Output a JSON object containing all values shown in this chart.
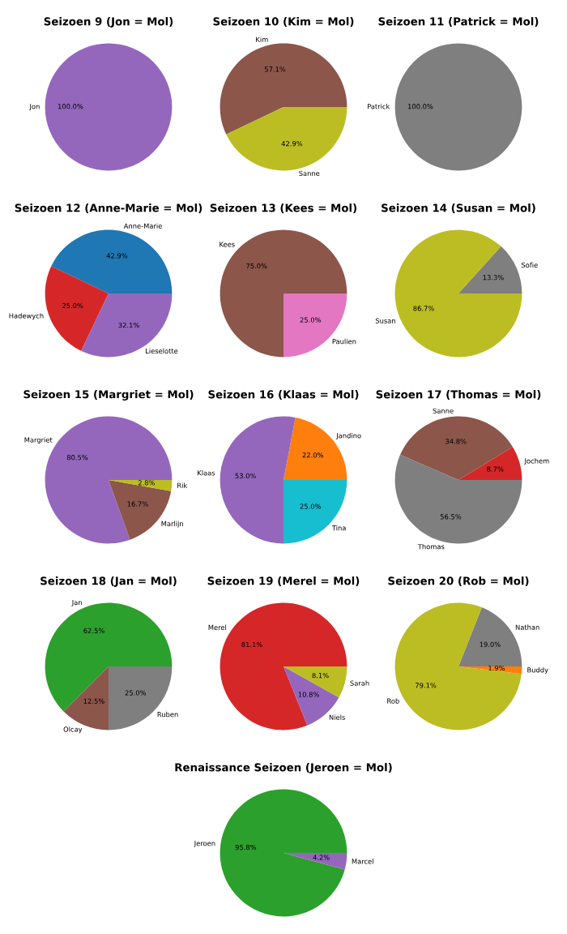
{
  "chart_data": [
    {
      "type": "pie",
      "title": "Seizoen 9 (Jon = Mol)",
      "categories": [
        "Jon"
      ],
      "values": [
        100
      ],
      "value_labels": [
        "100.0%"
      ],
      "colors": [
        "#9467bd"
      ]
    },
    {
      "type": "pie",
      "title": "Seizoen 10 (Kim = Mol)",
      "categories": [
        "Kim",
        "Sanne"
      ],
      "values": [
        57.1,
        42.9
      ],
      "value_labels": [
        "57.1%",
        "42.9%"
      ],
      "colors": [
        "#8c564b",
        "#bcbd22"
      ]
    },
    {
      "type": "pie",
      "title": "Seizoen 11 (Patrick = Mol)",
      "categories": [
        "Patrick"
      ],
      "values": [
        100
      ],
      "value_labels": [
        "100.0%"
      ],
      "colors": [
        "#7f7f7f"
      ]
    },
    {
      "type": "pie",
      "title": "Seizoen 12 (Anne-Marie = Mol)",
      "categories": [
        "Anne-Marie",
        "Hadewych",
        "Lieselotte"
      ],
      "values": [
        42.9,
        25,
        32.1
      ],
      "value_labels": [
        "42.9%",
        "25.0%",
        "32.1%"
      ],
      "colors": [
        "#1f77b4",
        "#d62728",
        "#9467bd"
      ]
    },
    {
      "type": "pie",
      "title": "Seizoen 13 (Kees = Mol)",
      "categories": [
        "Kees",
        "Paulien"
      ],
      "values": [
        75,
        25
      ],
      "value_labels": [
        "75.0%",
        "25.0%"
      ],
      "colors": [
        "#8c564b",
        "#e377c2"
      ]
    },
    {
      "type": "pie",
      "title": "Seizoen 14 (Susan = Mol)",
      "categories": [
        "Sofie",
        "Susan"
      ],
      "values": [
        13.3,
        86.7
      ],
      "value_labels": [
        "13.3%",
        "86.7%"
      ],
      "colors": [
        "#7f7f7f",
        "#bcbd22"
      ]
    },
    {
      "type": "pie",
      "title": "Seizoen 15 (Margriet = Mol)",
      "categories": [
        "Margriet",
        "Marlijn",
        "Rik"
      ],
      "values": [
        80.5,
        16.7,
        2.8
      ],
      "value_labels": [
        "80.5%",
        "16.7%",
        "2.8%"
      ],
      "colors": [
        "#9467bd",
        "#8c564b",
        "#bcbd22"
      ]
    },
    {
      "type": "pie",
      "title": "Seizoen 16 (Klaas = Mol)",
      "categories": [
        "Jandino",
        "Klaas",
        "Tina"
      ],
      "values": [
        22,
        53,
        25
      ],
      "value_labels": [
        "22.0%",
        "53.0%",
        "25.0%"
      ],
      "colors": [
        "#ff7f0e",
        "#9467bd",
        "#17becf"
      ]
    },
    {
      "type": "pie",
      "title": "Seizoen 17 (Thomas = Mol)",
      "categories": [
        "Jochem",
        "Sanne",
        "Thomas"
      ],
      "values": [
        8.7,
        34.8,
        56.5
      ],
      "value_labels": [
        "8.7%",
        "34.8%",
        "56.5%"
      ],
      "colors": [
        "#d62728",
        "#8c564b",
        "#7f7f7f"
      ]
    },
    {
      "type": "pie",
      "title": "Seizoen 18 (Jan = Mol)",
      "categories": [
        "Jan",
        "Olcay",
        "Ruben"
      ],
      "values": [
        62.5,
        12.5,
        25
      ],
      "value_labels": [
        "62.5%",
        "12.5%",
        "25.0%"
      ],
      "colors": [
        "#2ca02c",
        "#8c564b",
        "#7f7f7f"
      ]
    },
    {
      "type": "pie",
      "title": "Seizoen 19 (Merel = Mol)",
      "categories": [
        "Merel",
        "Niels",
        "Sarah"
      ],
      "values": [
        81.1,
        10.8,
        8.1
      ],
      "value_labels": [
        "81.1%",
        "10.8%",
        "8.1%"
      ],
      "colors": [
        "#d62728",
        "#9467bd",
        "#bcbd22"
      ]
    },
    {
      "type": "pie",
      "title": "Seizoen 20 (Rob = Mol)",
      "categories": [
        "Nathan",
        "Rob",
        "Buddy"
      ],
      "values": [
        19,
        79.1,
        1.9
      ],
      "value_labels": [
        "19.0%",
        "79.1%",
        "1.9%"
      ],
      "colors": [
        "#7f7f7f",
        "#bcbd22",
        "#ff7f0e"
      ]
    },
    {
      "type": "pie",
      "title": "Renaissance Seizoen (Jeroen = Mol)",
      "categories": [
        "Jeroen",
        "Marcel"
      ],
      "values": [
        95.8,
        4.2
      ],
      "value_labels": [
        "95.8%",
        "4.2%"
      ],
      "colors": [
        "#2ca02c",
        "#9467bd"
      ]
    }
  ]
}
